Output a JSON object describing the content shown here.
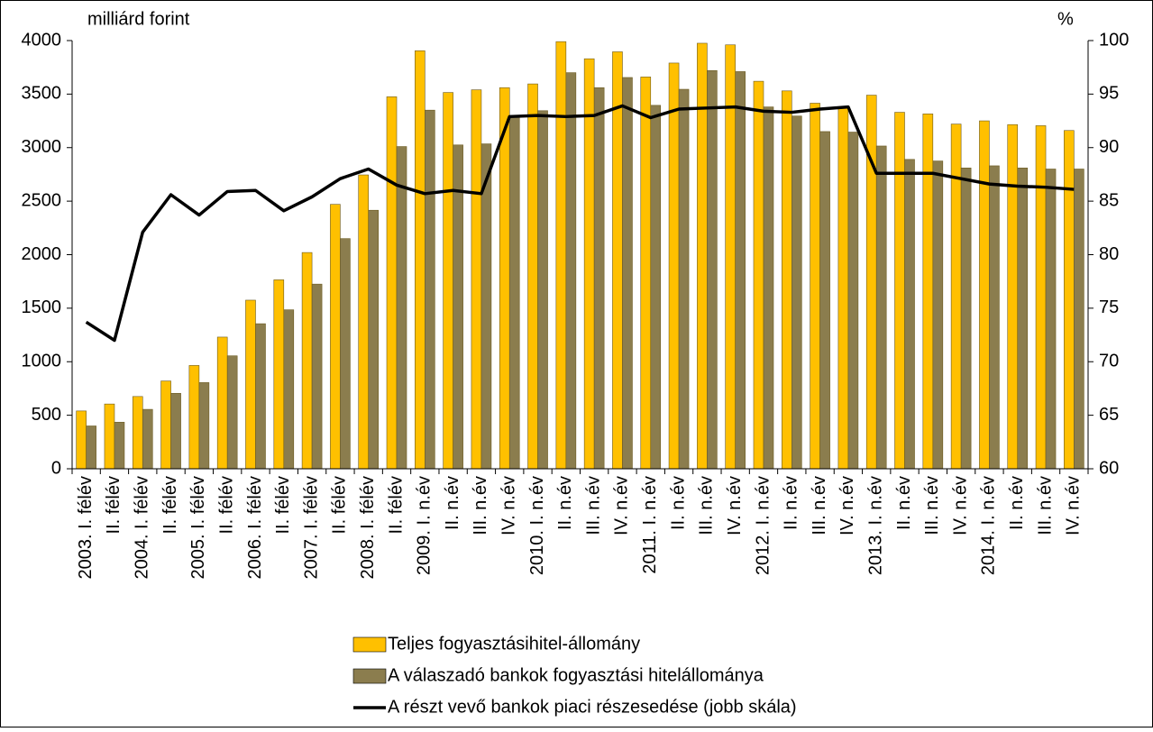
{
  "chart_data": {
    "type": "bar",
    "y_label": "milliárd forint",
    "y2_label": "%",
    "categories": [
      "2003. I. félév",
      "II. félév",
      "2004. I. félév",
      "II. félév",
      "2005. I. félév",
      "II. félév",
      "2006. I. félév",
      "II. félév",
      "2007. I. félév",
      "II. félév",
      "2008. I. félév",
      "II. félév",
      "2009. I. n.év",
      "II. n.év",
      "III. n.év",
      "IV. n.év",
      "2010. I. n.év",
      "II. n.év",
      "III. n.év",
      "IV. n.év",
      "2011. I. n.év",
      "II. n.év",
      "III. n.év",
      "IV. n.év",
      "2012. I. n.év",
      "II. n.év",
      "III. n.év",
      "IV. n.év",
      "2013. I. n.év",
      "II. n.év",
      "III. n.év",
      "IV. n.év",
      "2014. I. n.év",
      "II. n.év",
      "III. n.év",
      "IV. n.év"
    ],
    "series": [
      {
        "name": "Teljes fogyasztásihitel-állomány",
        "color": "#ffc000",
        "type": "bar",
        "values": [
          540,
          605,
          675,
          820,
          965,
          1230,
          1575,
          1765,
          2020,
          2470,
          2745,
          3475,
          3905,
          3515,
          3540,
          3560,
          3595,
          3990,
          3830,
          3895,
          3660,
          3790,
          3975,
          3960,
          3620,
          3530,
          3415,
          3370,
          3490,
          3330,
          3315,
          3220,
          3250,
          3215,
          3205,
          3160
        ]
      },
      {
        "name": "A válaszadó bankok fogyasztási hitelállománya",
        "color": "#8b7d4e",
        "type": "bar",
        "values": [
          400,
          435,
          555,
          705,
          805,
          1055,
          1355,
          1485,
          1725,
          2150,
          2415,
          3010,
          3350,
          3025,
          3035,
          3290,
          3345,
          3700,
          3560,
          3655,
          3395,
          3545,
          3720,
          3710,
          3380,
          3295,
          3150,
          3145,
          3015,
          2890,
          2875,
          2810,
          2830,
          2810,
          2800,
          2800
        ]
      },
      {
        "name": "A részt vevő bankok piaci részesedése (jobb skála)",
        "color": "#000000",
        "type": "line",
        "axis": "y2",
        "values": [
          73.7,
          72.0,
          82.1,
          85.6,
          83.7,
          85.9,
          86.0,
          84.1,
          85.4,
          87.1,
          88.0,
          86.5,
          85.7,
          86.0,
          85.7,
          92.9,
          93.0,
          92.9,
          93.0,
          93.9,
          92.8,
          93.6,
          93.7,
          93.8,
          93.4,
          93.3,
          93.6,
          93.8,
          87.6,
          87.6,
          87.6,
          87.1,
          86.6,
          86.4,
          86.3,
          86.1
        ]
      }
    ],
    "ylim": [
      0,
      4000
    ],
    "yticks": [
      0,
      500,
      1000,
      1500,
      2000,
      2500,
      3000,
      3500,
      4000
    ],
    "y2lim": [
      60,
      100
    ],
    "y2ticks": [
      60,
      65,
      70,
      75,
      80,
      85,
      90,
      95,
      100
    ],
    "grid": false
  }
}
